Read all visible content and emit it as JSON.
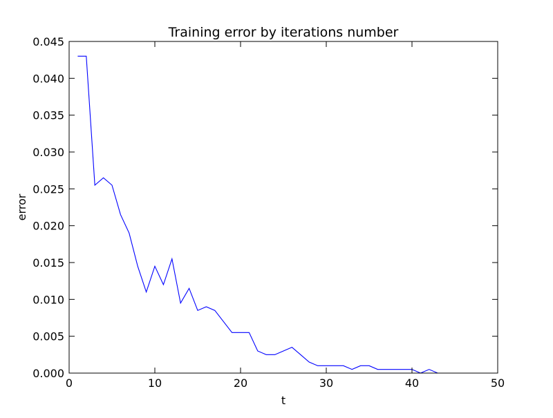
{
  "chart_data": {
    "type": "line",
    "title": "Training error by iterations number",
    "xlabel": "t",
    "ylabel": "error",
    "xlim": [
      0,
      50
    ],
    "ylim": [
      0,
      0.045
    ],
    "grid": false,
    "legend": "none",
    "xticks": [
      "0",
      "10",
      "20",
      "30",
      "40",
      "50"
    ],
    "yticks": [
      "0.000",
      "0.005",
      "0.010",
      "0.015",
      "0.020",
      "0.025",
      "0.030",
      "0.035",
      "0.040",
      "0.045"
    ],
    "line_color": "#0000ff",
    "series": [
      {
        "x": [
          1,
          2,
          3,
          4,
          5,
          6,
          7,
          8,
          9,
          10,
          11,
          12,
          13,
          14,
          15,
          16,
          17,
          18,
          19,
          20,
          21,
          22,
          23,
          24,
          25,
          26,
          27,
          28,
          29,
          30,
          31,
          32,
          33,
          34,
          35,
          36,
          37,
          38,
          39,
          40,
          41,
          42,
          43,
          44,
          45,
          46,
          47,
          48,
          49,
          50
        ],
        "y": [
          0.043,
          0.043,
          0.0255,
          0.0265,
          0.0255,
          0.0215,
          0.019,
          0.0145,
          0.011,
          0.0145,
          0.012,
          0.0155,
          0.0095,
          0.0115,
          0.0085,
          0.009,
          0.0085,
          0.007,
          0.0055,
          0.0055,
          0.0055,
          0.003,
          0.0025,
          0.0025,
          0.003,
          0.0035,
          0.0025,
          0.0015,
          0.001,
          0.001,
          0.001,
          0.001,
          0.0005,
          0.001,
          0.001,
          0.0005,
          0.0005,
          0.0005,
          0.0005,
          0.0005,
          0.0,
          0.0005,
          0.0,
          0.0,
          0.0,
          0.0,
          0.0,
          0.0,
          0.0,
          0.0
        ]
      }
    ]
  }
}
